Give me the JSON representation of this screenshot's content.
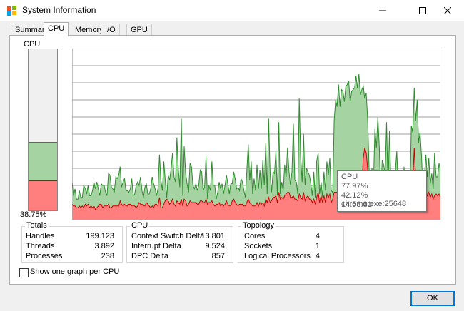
{
  "window": {
    "title": "System Information"
  },
  "tabs": [
    {
      "label": "Summary"
    },
    {
      "label": "CPU"
    },
    {
      "label": "Memory"
    },
    {
      "label": "I/O"
    },
    {
      "label": "GPU"
    }
  ],
  "meter": {
    "label": "CPU",
    "percent_text": "38.75%",
    "total_fraction": 0.42,
    "kernel_fraction": 0.18
  },
  "tooltip": {
    "title": "CPU",
    "total": "77.97%",
    "process": "42.12% chrome.exe:25648",
    "time": "14:58:31"
  },
  "totals": {
    "title": "Totals",
    "rows": [
      {
        "label": "Handles",
        "value": "199.123"
      },
      {
        "label": "Threads",
        "value": "3.892"
      },
      {
        "label": "Processes",
        "value": "238"
      }
    ]
  },
  "cpu_group": {
    "title": "CPU",
    "rows": [
      {
        "label": "Context Switch Delta",
        "value": "13.801"
      },
      {
        "label": "Interrupt Delta",
        "value": "9.524"
      },
      {
        "label": "DPC Delta",
        "value": "857"
      }
    ]
  },
  "topology": {
    "title": "Topology",
    "rows": [
      {
        "label": "Cores",
        "value": "4"
      },
      {
        "label": "Sockets",
        "value": "1"
      },
      {
        "label": "Logical Processors",
        "value": "4"
      }
    ]
  },
  "checkbox": {
    "label": "Show one graph per CPU",
    "checked": false
  },
  "buttons": {
    "ok": "OK"
  },
  "colors": {
    "total_fill": "#a6d3a2",
    "total_line": "#2e8b2e",
    "kernel_fill": "#ff7f7f",
    "kernel_line": "#cc0000",
    "grid": "#a0a0a0"
  },
  "chart_data": {
    "type": "area",
    "ylim": [
      0,
      100
    ],
    "grid": true,
    "series": [
      {
        "values": [
          22,
          14,
          18,
          12,
          12,
          17,
          13,
          13,
          20,
          18,
          15,
          20,
          14,
          14,
          17,
          22,
          18,
          22,
          18,
          14,
          21,
          20,
          20,
          16,
          14,
          27,
          26,
          19,
          18,
          16,
          25,
          24,
          26,
          31,
          19,
          22,
          24,
          17,
          17,
          16,
          18,
          24,
          14,
          15,
          20,
          22,
          20,
          25,
          17,
          13,
          19,
          21,
          15,
          15,
          18,
          25,
          21,
          18,
          14,
          18,
          38,
          23,
          17,
          34,
          23,
          13,
          26,
          23,
          30,
          39,
          25,
          22,
          48,
          29,
          19,
          59,
          14,
          43,
          27,
          21,
          16,
          33,
          31,
          20,
          18,
          21,
          17,
          20,
          29,
          28,
          17,
          19,
          37,
          12,
          20,
          17,
          34,
          20,
          20,
          12,
          16,
          22,
          18,
          21,
          15,
          20,
          26,
          21,
          15,
          21,
          21,
          28,
          24,
          18,
          19,
          17,
          24,
          22,
          17,
          13,
          28,
          44,
          23,
          34,
          15,
          24,
          17,
          32,
          18,
          29,
          18,
          35,
          20,
          45,
          15,
          59,
          27,
          16,
          28,
          27,
          40,
          14,
          57,
          15,
          22,
          17,
          32,
          25,
          42,
          28,
          20,
          28,
          56,
          23,
          22,
          15,
          71,
          37,
          22,
          50,
          20,
          30,
          28,
          26,
          21,
          14,
          28,
          13,
          34,
          39,
          15,
          22,
          13,
          28,
          17,
          34,
          26,
          36,
          17,
          16,
          58,
          70,
          66,
          79,
          66,
          76,
          75,
          69,
          78,
          79,
          81,
          69,
          75,
          76,
          77,
          84,
          77,
          85,
          73,
          76,
          78,
          71,
          74,
          59,
          29,
          24,
          30,
          22,
          53,
          42,
          60,
          43,
          13,
          35,
          32,
          27,
          57,
          18,
          52,
          20,
          27,
          19,
          28,
          40,
          19,
          16,
          26,
          12,
          31,
          16,
          14,
          23,
          14,
          55,
          51,
          77,
          58,
          70,
          45,
          51,
          37,
          17,
          26,
          38,
          25,
          36,
          21,
          27,
          18,
          39,
          25,
          25,
          33,
          29
        ]
      },
      {
        "values": [
          9,
          8,
          8,
          7,
          7,
          8,
          7,
          8,
          7,
          9,
          8,
          9,
          7,
          8,
          7,
          8,
          6,
          7,
          8,
          9,
          9,
          7,
          8,
          8,
          8,
          9,
          7,
          7,
          8,
          8,
          8,
          8,
          8,
          11,
          9,
          8,
          9,
          8,
          8,
          9,
          9,
          8,
          8,
          8,
          7,
          8,
          10,
          9,
          9,
          8,
          8,
          10,
          9,
          8,
          7,
          8,
          7,
          9,
          9,
          8,
          13,
          7,
          7,
          9,
          11,
          12,
          11,
          9,
          10,
          12,
          9,
          8,
          11,
          10,
          9,
          12,
          8,
          12,
          11,
          8,
          9,
          11,
          10,
          10,
          10,
          10,
          9,
          9,
          11,
          11,
          10,
          10,
          12,
          9,
          10,
          10,
          11,
          9,
          8,
          9,
          9,
          10,
          8,
          9,
          8,
          9,
          11,
          9,
          8,
          8,
          11,
          12,
          10,
          9,
          8,
          9,
          9,
          9,
          8,
          8,
          10,
          12,
          10,
          9,
          8,
          8,
          8,
          10,
          8,
          10,
          9,
          10,
          8,
          12,
          10,
          13,
          10,
          11,
          13,
          13,
          14,
          10,
          16,
          12,
          13,
          12,
          14,
          15,
          16,
          16,
          13,
          13,
          14,
          12,
          12,
          11,
          15,
          13,
          12,
          16,
          11,
          13,
          14,
          12,
          12,
          10,
          12,
          9,
          13,
          16,
          10,
          14,
          10,
          14,
          10,
          15,
          13,
          15,
          10,
          12,
          16,
          16,
          16,
          17,
          14,
          17,
          19,
          16,
          20,
          17,
          18,
          17,
          20,
          18,
          17,
          19,
          22,
          19,
          18,
          20,
          36,
          42,
          39,
          30,
          17,
          21,
          22,
          20,
          26,
          22,
          27,
          23,
          16,
          22,
          19,
          20,
          24,
          14,
          22,
          16,
          18,
          14,
          15,
          18,
          14,
          13,
          16,
          11,
          18,
          15,
          13,
          17,
          14,
          20,
          22,
          42,
          24,
          26,
          18,
          20,
          16,
          12,
          15,
          17,
          14,
          16,
          13,
          15,
          12,
          14,
          15,
          14,
          15,
          13
        ]
      }
    ]
  }
}
